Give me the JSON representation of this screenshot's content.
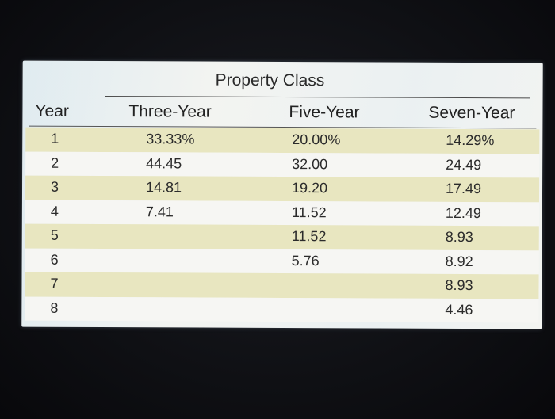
{
  "table": {
    "group_header": "Property Class",
    "columns": [
      "Year",
      "Three-Year",
      "Five-Year",
      "Seven-Year"
    ],
    "rows": [
      {
        "year": "1",
        "three": "33.33%",
        "five": "20.00%",
        "seven": "14.29%"
      },
      {
        "year": "2",
        "three": "44.45",
        "five": "32.00",
        "seven": "24.49"
      },
      {
        "year": "3",
        "three": "14.81",
        "five": "19.20",
        "seven": "17.49"
      },
      {
        "year": "4",
        "three": "7.41",
        "five": "11.52",
        "seven": "12.49"
      },
      {
        "year": "5",
        "three": "",
        "five": "11.52",
        "seven": "8.93"
      },
      {
        "year": "6",
        "three": "",
        "five": "5.76",
        "seven": "8.92"
      },
      {
        "year": "7",
        "three": "",
        "five": "",
        "seven": "8.93"
      },
      {
        "year": "8",
        "three": "",
        "five": "",
        "seven": "4.46"
      }
    ]
  },
  "colors": {
    "shaded_row": "#e8e6c0",
    "plain_row": "#f6f6f3",
    "background": "#0f1014"
  }
}
